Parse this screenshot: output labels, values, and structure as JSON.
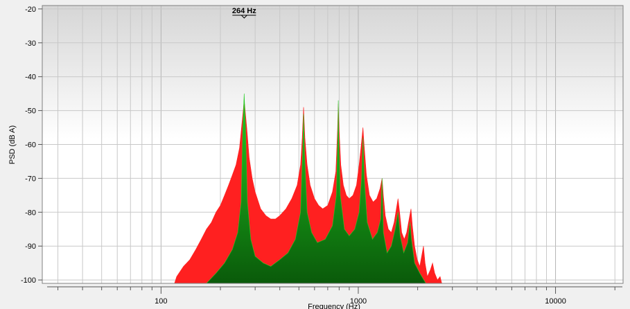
{
  "chart_data": {
    "type": "area",
    "xscale": "log",
    "xlim": [
      25,
      22000
    ],
    "ylim": [
      -101,
      -19
    ],
    "xlabel": "Frequency (Hz)",
    "ylabel": "PSD (dB A)",
    "xticks": [
      {
        "value": 100,
        "label": "100"
      },
      {
        "value": 1000,
        "label": "1000"
      },
      {
        "value": 10000,
        "label": "10000"
      }
    ],
    "yticks": [
      {
        "value": -20,
        "label": "-20"
      },
      {
        "value": -30,
        "label": "-30"
      },
      {
        "value": -40,
        "label": "-40"
      },
      {
        "value": -50,
        "label": "-50"
      },
      {
        "value": -60,
        "label": "-60"
      },
      {
        "value": -70,
        "label": "-70"
      },
      {
        "value": -80,
        "label": "-80"
      },
      {
        "value": -90,
        "label": "-90"
      },
      {
        "value": -100,
        "label": "-100"
      }
    ],
    "grid": true,
    "marker": {
      "frequency": 264,
      "label": "264 Hz"
    },
    "colors": {
      "background_top": "#d6d6d6",
      "background_bottom": "#ffffff",
      "grid": "#c8c8c8",
      "series_max": "#ff2020",
      "series_current_dark": "#0a5a0a",
      "series_current_bright": "#22cc22"
    },
    "series": [
      {
        "color": "#ff2020",
        "points": [
          [
            117,
            -101
          ],
          [
            120,
            -99
          ],
          [
            130,
            -96
          ],
          [
            140,
            -94
          ],
          [
            150,
            -91
          ],
          [
            160,
            -88
          ],
          [
            170,
            -85
          ],
          [
            180,
            -83
          ],
          [
            190,
            -80
          ],
          [
            200,
            -78
          ],
          [
            210,
            -75
          ],
          [
            220,
            -72
          ],
          [
            230,
            -69
          ],
          [
            240,
            -66
          ],
          [
            250,
            -61
          ],
          [
            256,
            -55
          ],
          [
            262,
            -49
          ],
          [
            264,
            -47
          ],
          [
            266,
            -49
          ],
          [
            272,
            -55
          ],
          [
            280,
            -64
          ],
          [
            290,
            -70
          ],
          [
            300,
            -74
          ],
          [
            320,
            -79
          ],
          [
            340,
            -81
          ],
          [
            360,
            -82
          ],
          [
            380,
            -82
          ],
          [
            400,
            -81
          ],
          [
            430,
            -79
          ],
          [
            460,
            -76
          ],
          [
            490,
            -72
          ],
          [
            510,
            -66
          ],
          [
            520,
            -58
          ],
          [
            528,
            -49
          ],
          [
            536,
            -58
          ],
          [
            550,
            -66
          ],
          [
            570,
            -72
          ],
          [
            600,
            -76
          ],
          [
            630,
            -78
          ],
          [
            660,
            -79
          ],
          [
            700,
            -78
          ],
          [
            740,
            -74
          ],
          [
            770,
            -68
          ],
          [
            785,
            -56
          ],
          [
            792,
            -48
          ],
          [
            800,
            -56
          ],
          [
            815,
            -66
          ],
          [
            840,
            -72
          ],
          [
            870,
            -75
          ],
          [
            900,
            -76
          ],
          [
            940,
            -75
          ],
          [
            980,
            -72
          ],
          [
            1010,
            -66
          ],
          [
            1040,
            -59
          ],
          [
            1056,
            -55
          ],
          [
            1070,
            -60
          ],
          [
            1100,
            -69
          ],
          [
            1140,
            -75
          ],
          [
            1190,
            -77
          ],
          [
            1240,
            -76
          ],
          [
            1290,
            -73
          ],
          [
            1320,
            -70
          ],
          [
            1340,
            -75
          ],
          [
            1370,
            -81
          ],
          [
            1420,
            -85
          ],
          [
            1470,
            -86
          ],
          [
            1520,
            -83
          ],
          [
            1560,
            -79
          ],
          [
            1590,
            -76
          ],
          [
            1620,
            -80
          ],
          [
            1660,
            -86
          ],
          [
            1710,
            -88
          ],
          [
            1760,
            -86
          ],
          [
            1810,
            -82
          ],
          [
            1850,
            -79
          ],
          [
            1880,
            -84
          ],
          [
            1930,
            -90
          ],
          [
            1990,
            -94
          ],
          [
            2050,
            -96
          ],
          [
            2110,
            -92
          ],
          [
            2140,
            -90
          ],
          [
            2180,
            -95
          ],
          [
            2240,
            -99
          ],
          [
            2320,
            -97
          ],
          [
            2380,
            -95
          ],
          [
            2440,
            -98
          ],
          [
            2520,
            -100
          ],
          [
            2600,
            -99
          ],
          [
            2650,
            -101
          ]
        ]
      },
      {
        "color": "#22cc22",
        "points": [
          [
            170,
            -101
          ],
          [
            190,
            -98
          ],
          [
            210,
            -95
          ],
          [
            230,
            -91
          ],
          [
            245,
            -86
          ],
          [
            255,
            -77
          ],
          [
            260,
            -55
          ],
          [
            264,
            -45
          ],
          [
            268,
            -55
          ],
          [
            274,
            -77
          ],
          [
            285,
            -88
          ],
          [
            300,
            -93
          ],
          [
            330,
            -95
          ],
          [
            360,
            -96
          ],
          [
            400,
            -94
          ],
          [
            440,
            -92
          ],
          [
            480,
            -88
          ],
          [
            510,
            -80
          ],
          [
            522,
            -63
          ],
          [
            528,
            -51
          ],
          [
            534,
            -63
          ],
          [
            550,
            -80
          ],
          [
            580,
            -86
          ],
          [
            620,
            -89
          ],
          [
            680,
            -88
          ],
          [
            740,
            -84
          ],
          [
            775,
            -75
          ],
          [
            788,
            -57
          ],
          [
            792,
            -47
          ],
          [
            796,
            -57
          ],
          [
            810,
            -75
          ],
          [
            850,
            -85
          ],
          [
            900,
            -87
          ],
          [
            960,
            -85
          ],
          [
            1010,
            -80
          ],
          [
            1040,
            -70
          ],
          [
            1056,
            -58
          ],
          [
            1072,
            -70
          ],
          [
            1110,
            -83
          ],
          [
            1180,
            -88
          ],
          [
            1250,
            -86
          ],
          [
            1300,
            -82
          ],
          [
            1320,
            -70
          ],
          [
            1340,
            -86
          ],
          [
            1400,
            -92
          ],
          [
            1470,
            -90
          ],
          [
            1540,
            -85
          ],
          [
            1590,
            -80
          ],
          [
            1630,
            -87
          ],
          [
            1700,
            -92
          ],
          [
            1780,
            -89
          ],
          [
            1830,
            -83
          ],
          [
            1860,
            -88
          ],
          [
            1930,
            -95
          ],
          [
            2050,
            -98
          ],
          [
            2200,
            -101
          ]
        ]
      }
    ]
  }
}
